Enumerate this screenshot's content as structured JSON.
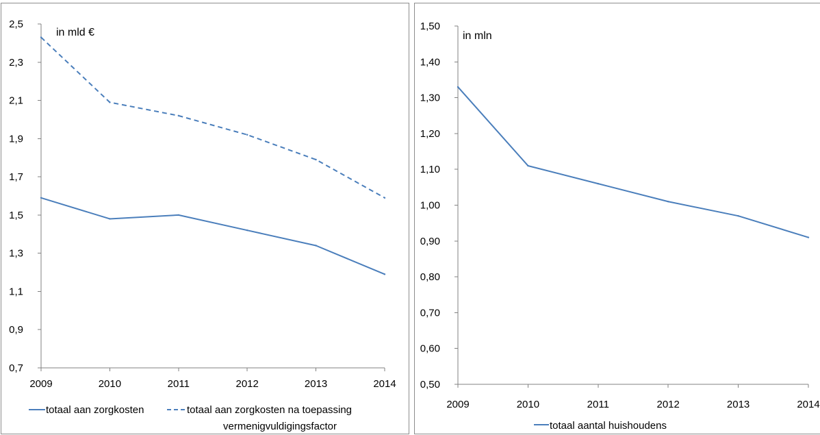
{
  "chart_data": [
    {
      "type": "line",
      "unit_label": "in mld €",
      "x": [
        "2009",
        "2010",
        "2011",
        "2012",
        "2013",
        "2014"
      ],
      "yticks": [
        "2,5",
        "2,3",
        "2,1",
        "1,9",
        "1,7",
        "1,5",
        "1,3",
        "1,1",
        "0,9",
        "0,7"
      ],
      "ylim": [
        0.7,
        2.5
      ],
      "grid": false,
      "legend_position": "bottom",
      "series": [
        {
          "name": "totaal aan zorgkosten",
          "values": [
            1.59,
            1.48,
            1.5,
            1.42,
            1.34,
            1.19
          ],
          "style": "solid",
          "color": "#4a7ebb"
        },
        {
          "name": "totaal aan zorgkosten na toepassing vermenigvuldigingsfactor",
          "name_line1": "totaal aan zorgkosten na toepassing",
          "name_line2": "vermenigvuldigingsfactor",
          "values": [
            2.43,
            2.09,
            2.02,
            1.92,
            1.79,
            1.59
          ],
          "style": "dashed",
          "color": "#4a7ebb"
        }
      ]
    },
    {
      "type": "line",
      "unit_label": "in mln",
      "x": [
        "2009",
        "2010",
        "2011",
        "2012",
        "2013",
        "2014"
      ],
      "yticks": [
        "1,50",
        "1,40",
        "1,30",
        "1,20",
        "1,10",
        "1,00",
        "0,90",
        "0,80",
        "0,70",
        "0,60",
        "0,50"
      ],
      "ylim": [
        0.5,
        1.5
      ],
      "grid": false,
      "legend_position": "bottom",
      "series": [
        {
          "name": "totaal aantal huishoudens",
          "values": [
            1.33,
            1.11,
            1.06,
            1.01,
            0.97,
            0.91
          ],
          "style": "solid",
          "color": "#4a7ebb"
        }
      ]
    }
  ]
}
